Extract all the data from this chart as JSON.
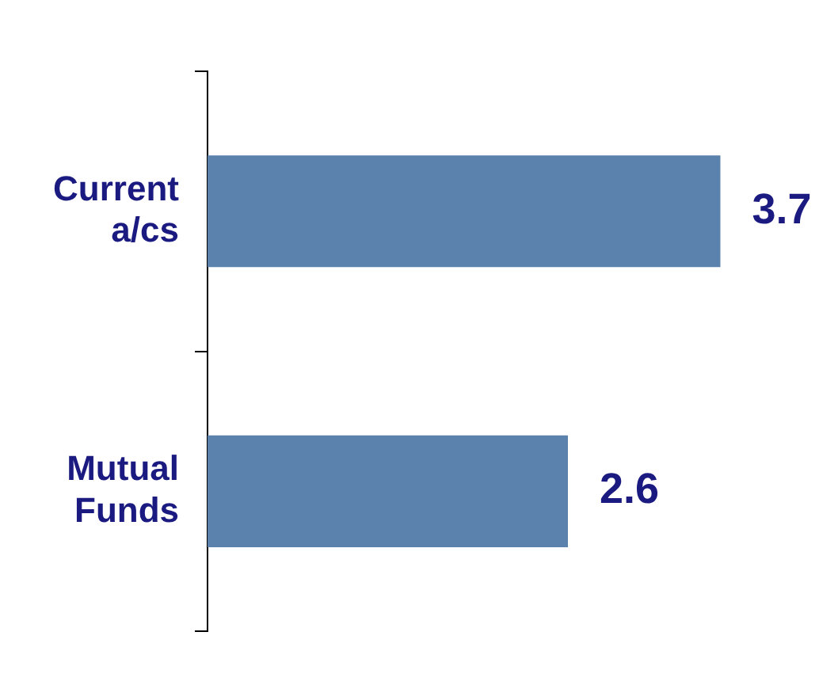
{
  "chart_data": {
    "type": "bar",
    "orientation": "horizontal",
    "categories": [
      "Current a/cs",
      "Mutual Funds"
    ],
    "values": [
      3.7,
      2.6
    ],
    "color": "#5a82ad",
    "data_labels": true,
    "legend": false,
    "tick_labels": "y"
  }
}
